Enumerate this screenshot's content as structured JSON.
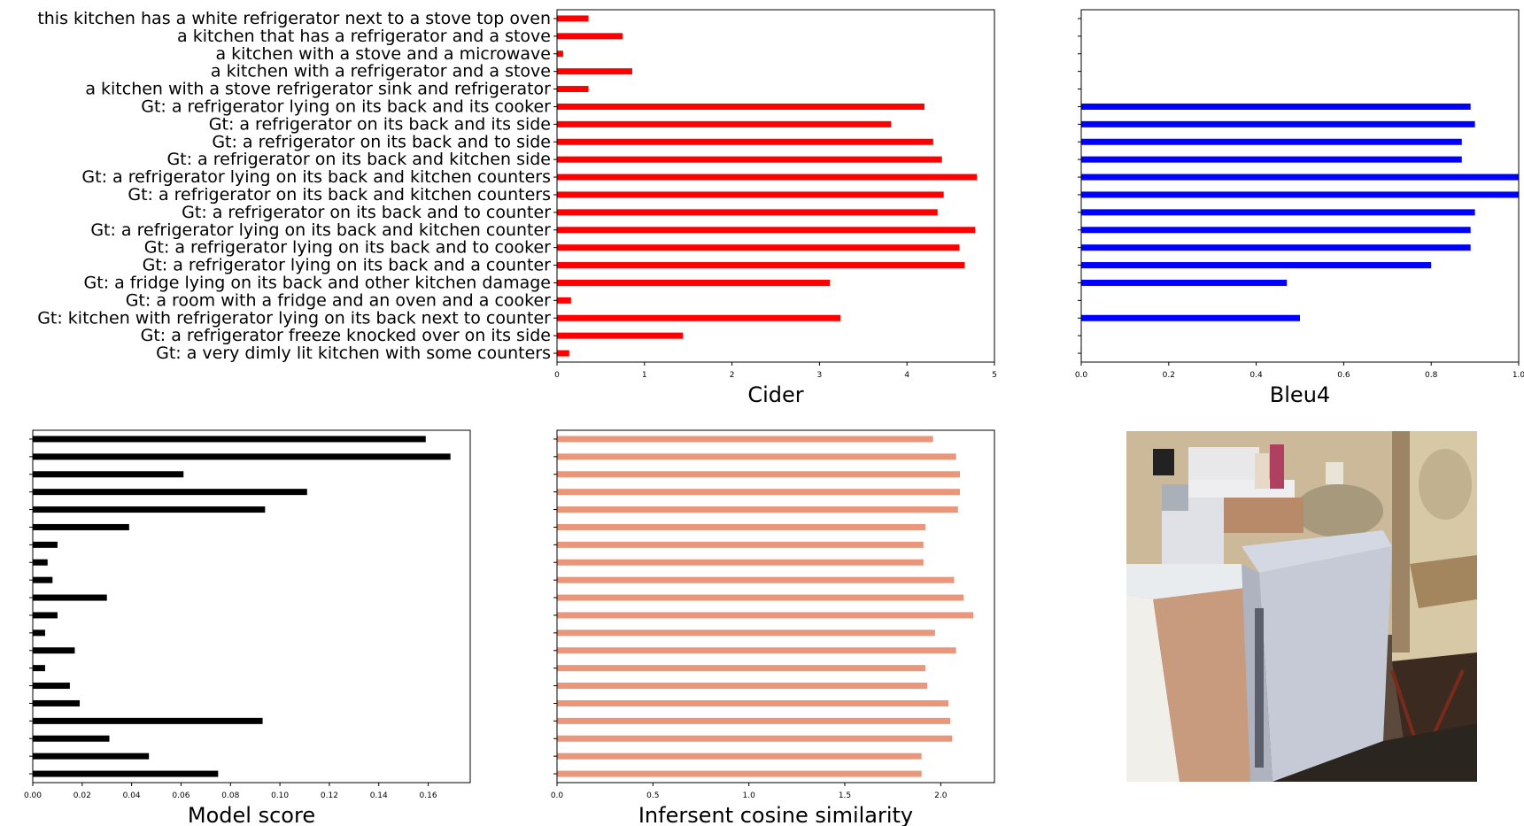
{
  "categories": [
    "this kitchen has a white refrigerator next to a stove top oven",
    "a kitchen that has a refrigerator and a stove",
    "a kitchen with a stove and a microwave",
    "a kitchen with a refrigerator and a stove",
    "a kitchen with a stove refrigerator sink and refrigerator",
    "Gt: a refrigerator lying on its back and its cooker",
    "Gt: a refrigerator on its back and its side",
    "Gt: a refrigerator on its back and to side",
    "Gt: a refrigerator on its back and kitchen side",
    "Gt: a refrigerator lying on its back and kitchen counters",
    "Gt: a refrigerator on its back and kitchen counters",
    "Gt: a refrigerator on its back and to counter",
    "Gt: a refrigerator lying on its back and kitchen counter",
    "Gt: a refrigerator lying on its back and to cooker",
    "Gt: a refrigerator lying on its back and a counter",
    "Gt: a fridge lying on its back and other kitchen damage",
    "Gt: a room with a fridge and an oven and a cooker",
    "Gt: kitchen with refrigerator lying on its back next to counter",
    "Gt: a refrigerator freeze knocked over on its side",
    "Gt: a very dimly lit kitchen with some counters"
  ],
  "chart_data": [
    {
      "type": "bar",
      "orientation": "horizontal",
      "xlabel": "Cider",
      "xlim": [
        0,
        5
      ],
      "xticks": [
        "0",
        "1",
        "2",
        "3",
        "4",
        "5"
      ],
      "show_category_labels": true,
      "color": "#ff0000",
      "values": [
        0.36,
        0.75,
        0.07,
        0.86,
        0.36,
        4.2,
        3.82,
        4.3,
        4.4,
        4.8,
        4.42,
        4.35,
        4.78,
        4.6,
        4.66,
        3.12,
        0.16,
        3.24,
        1.44,
        0.14
      ]
    },
    {
      "type": "bar",
      "orientation": "horizontal",
      "xlabel": "Bleu4",
      "xlim": [
        0,
        1.0
      ],
      "xticks": [
        "0.0",
        "0.2",
        "0.4",
        "0.6",
        "0.8",
        "1.0"
      ],
      "show_category_labels": false,
      "color": "#0000ff",
      "values": [
        0,
        0,
        0,
        0,
        0,
        0.89,
        0.9,
        0.87,
        0.87,
        1.0,
        1.0,
        0.9,
        0.89,
        0.89,
        0.8,
        0.47,
        0,
        0.5,
        0,
        0
      ]
    },
    {
      "type": "bar",
      "orientation": "horizontal",
      "xlabel": "Model score",
      "xlim": [
        0,
        0.177
      ],
      "xticks": [
        "0.00",
        "0.02",
        "0.04",
        "0.06",
        "0.08",
        "0.10",
        "0.12",
        "0.14",
        "0.16"
      ],
      "show_category_labels": false,
      "color": "#000000",
      "values": [
        0.159,
        0.169,
        0.061,
        0.111,
        0.094,
        0.039,
        0.01,
        0.006,
        0.008,
        0.03,
        0.01,
        0.005,
        0.017,
        0.005,
        0.015,
        0.019,
        0.093,
        0.031,
        0.047,
        0.075
      ]
    },
    {
      "type": "bar",
      "orientation": "horizontal",
      "xlabel": "Infersent cosine similarity",
      "xlim": [
        0,
        2.28
      ],
      "xticks": [
        "0.0",
        "0.5",
        "1.0",
        "1.5",
        "2.0"
      ],
      "show_category_labels": false,
      "color": "#e9967a",
      "values": [
        1.96,
        2.08,
        2.1,
        2.1,
        2.09,
        1.92,
        1.91,
        1.91,
        2.07,
        2.12,
        2.17,
        1.97,
        2.08,
        1.92,
        1.93,
        2.04,
        2.05,
        2.06,
        1.9,
        1.9
      ]
    }
  ],
  "photo": {
    "description_icon": "kitchen-photo"
  }
}
